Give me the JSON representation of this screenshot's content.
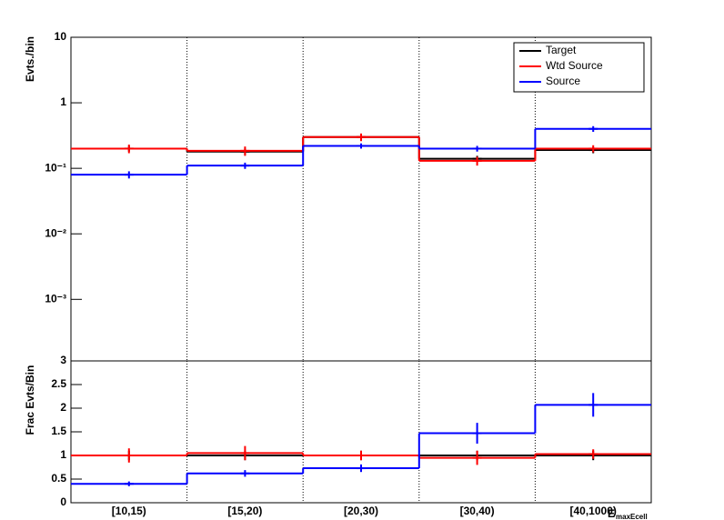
{
  "chart_data": [
    {
      "type": "step",
      "ylabel": "Evts./bin",
      "log_y": true,
      "grid_x": true,
      "ylim": [
        0.000115,
        10
      ],
      "yticks": [
        {
          "value": 0.001,
          "label": "10⁻³"
        },
        {
          "value": 0.01,
          "label": "10⁻²"
        },
        {
          "value": 0.1,
          "label": "10⁻¹"
        },
        1,
        10
      ],
      "legend": "top-right",
      "series": [
        {
          "name": "Target",
          "color": "#000000",
          "values": [
            0.2,
            0.18,
            0.3,
            0.14,
            0.19
          ],
          "errors": [
            0.02,
            0.02,
            0.03,
            0.015,
            0.02
          ]
        },
        {
          "name": "Wtd Source",
          "color": "#ff0000",
          "values": [
            0.2,
            0.185,
            0.3,
            0.13,
            0.2
          ],
          "errors": [
            0.03,
            0.03,
            0.04,
            0.02,
            0.025
          ]
        },
        {
          "name": "Source",
          "color": "#0000ff",
          "values": [
            0.08,
            0.11,
            0.22,
            0.2,
            0.4
          ],
          "errors": [
            0.01,
            0.012,
            0.02,
            0.02,
            0.04
          ]
        }
      ]
    },
    {
      "type": "step",
      "ylabel": "Frac Evts/Bin",
      "log_y": false,
      "grid_x": true,
      "xlabel": "E",
      "xlabel_sub": "maxEcell",
      "categories": [
        "[10,15)",
        "[15,20)",
        "[20,30)",
        "[30,40)",
        "[40,1000)"
      ],
      "ylim": [
        0,
        3
      ],
      "yticks": [
        0,
        0.5,
        1,
        1.5,
        2,
        2.5,
        3
      ],
      "series": [
        {
          "color": "#000000",
          "values": [
            1,
            1,
            1,
            1,
            1
          ],
          "errors": [
            0.1,
            0.1,
            0.1,
            0.1,
            0.1
          ]
        },
        {
          "color": "#ff0000",
          "values": [
            1,
            1.05,
            1,
            0.95,
            1.03
          ],
          "errors": [
            0.15,
            0.15,
            0.1,
            0.15,
            0.1
          ]
        },
        {
          "color": "#0000ff",
          "values": [
            0.4,
            0.62,
            0.73,
            1.47,
            2.07
          ],
          "errors": [
            0.05,
            0.07,
            0.08,
            0.22,
            0.25
          ]
        }
      ]
    }
  ]
}
